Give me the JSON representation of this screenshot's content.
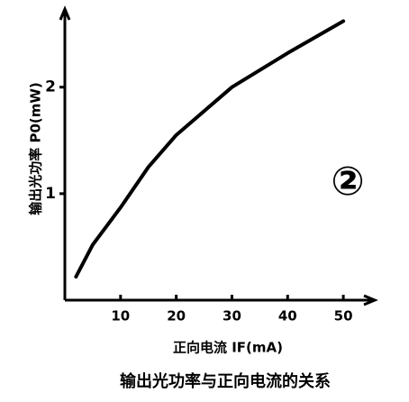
{
  "chart_data": {
    "type": "line",
    "title": "输出光功率与正向电流的关系",
    "x_label": "正向电流 IF(mA)",
    "y_label": "输出光功率 P0(mW)",
    "annotation": "②",
    "x": [
      2,
      5,
      10,
      15,
      20,
      30,
      40,
      50
    ],
    "series": [
      {
        "color": "#000000",
        "values": [
          0.22,
          0.52,
          0.87,
          1.25,
          1.55,
          2.0,
          2.32,
          2.62
        ]
      }
    ],
    "xlim": [
      0,
      55
    ],
    "xticks": [
      10,
      20,
      30,
      40,
      50
    ],
    "ylim": [
      0,
      2.7
    ],
    "yticks": [
      1,
      2
    ]
  }
}
